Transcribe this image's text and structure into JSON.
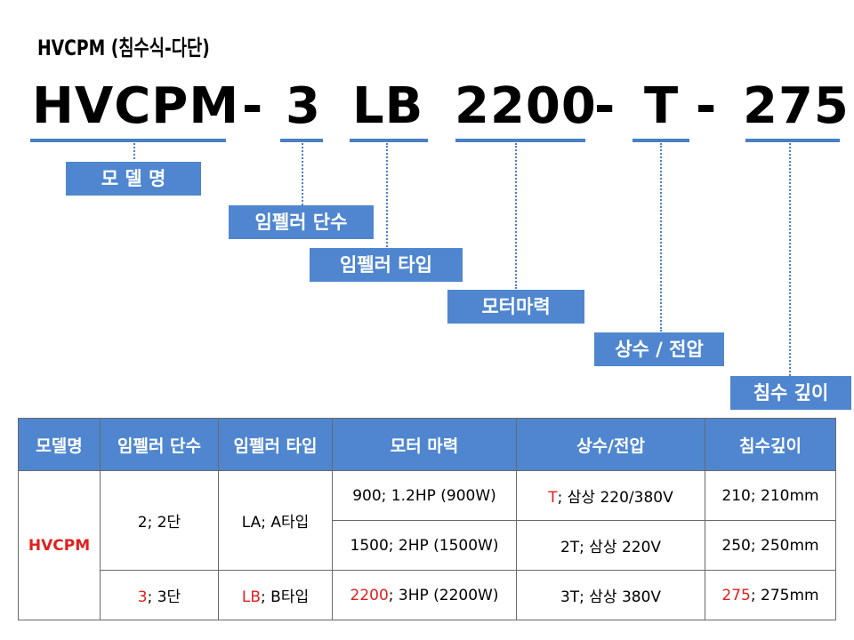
{
  "title": "HVCPM (침수식-다단)",
  "code": {
    "model": "HVCPM",
    "dash1": "-",
    "stages": "3",
    "impeller": "LB",
    "motor": "2200",
    "dash2": "-",
    "phase": "T",
    "dash3": "-",
    "depth": "275"
  },
  "labels": {
    "model": "모 델 명",
    "stages": "임펠러 단수",
    "impeller": "임펠러 타입",
    "motor": "모터마력",
    "phase": "상수 / 전압",
    "depth": "침수 깊이"
  },
  "table": {
    "headers": [
      "모델명",
      "임펠러 단수",
      "임펠러 타입",
      "모터 마력",
      "상수/전압",
      "침수깊이"
    ],
    "model": "HVCPM",
    "stages": [
      {
        "code": "2",
        "text": "; 2단"
      },
      {
        "code": "3",
        "text": "; 3단"
      }
    ],
    "impeller": [
      {
        "code": "LA",
        "text": "; A타입"
      },
      {
        "code": "LB",
        "text": "; B타입"
      }
    ],
    "motor": [
      {
        "code": "900",
        "text": "; 1.2HP (900W)"
      },
      {
        "code": "1500",
        "text": "; 2HP (1500W)"
      },
      {
        "code": "2200",
        "text": "; 3HP (2200W)"
      }
    ],
    "phase": [
      {
        "code": "T",
        "text": "; 삼상 220/380V"
      },
      {
        "code": "2T",
        "text": "; 삼상 220V"
      },
      {
        "code": "3T",
        "text": "; 삼상 380V"
      }
    ],
    "depth": [
      {
        "code": "210",
        "text": "; 210mm"
      },
      {
        "code": "250",
        "text": "; 250mm"
      },
      {
        "code": "275",
        "text": "; 275mm"
      }
    ]
  },
  "colors": {
    "accent_blue": "#4f86cf",
    "underline_blue": "#4a7fc4",
    "highlight_red": "#e02020"
  }
}
